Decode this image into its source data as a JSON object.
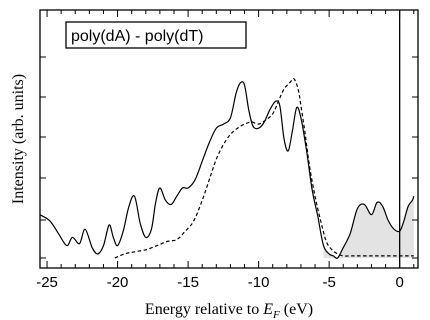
{
  "chart_data": {
    "type": "line",
    "xlabel_prefix": "Energy relative to ",
    "xlabel_var": "E",
    "xlabel_sub": "F",
    "xlabel_suffix": " (eV)",
    "ylabel": "Intensity (arb. units)",
    "legend_label": "poly(dA) - poly(dT)",
    "legend_placement": "top-left",
    "xlim": [
      -25.5,
      1.3
    ],
    "ylim": [
      0,
      1.0
    ],
    "xticks": [
      -25,
      -20,
      -15,
      -10,
      -5,
      0
    ],
    "xtick_labels": [
      "-25",
      "-20",
      "-15",
      "-10",
      "-5",
      "0"
    ],
    "grid": false,
    "fermi_level_x": 0,
    "fill_range": [
      -5.5,
      1.0
    ],
    "fill_color": "#e3e3e3",
    "series": [
      {
        "style": "solid",
        "x": [
          -25.5,
          -24.8,
          -24.2,
          -23.6,
          -23.2,
          -22.7,
          -22.3,
          -21.8,
          -21.4,
          -21.0,
          -20.6,
          -20.3,
          -20.0,
          -19.6,
          -19.2,
          -18.8,
          -18.4,
          -18.0,
          -17.6,
          -17.3,
          -17.0,
          -16.6,
          -16.2,
          -15.8,
          -15.4,
          -15.0,
          -14.5,
          -14.0,
          -13.5,
          -13.0,
          -12.5,
          -12.0,
          -11.6,
          -11.3,
          -11.0,
          -10.7,
          -10.4,
          -10.0,
          -9.6,
          -9.2,
          -8.8,
          -8.5,
          -8.2,
          -7.9,
          -7.6,
          -7.3,
          -7.0,
          -6.6,
          -6.2,
          -5.8,
          -5.4,
          -5.0,
          -4.7,
          -4.4,
          -4.0,
          -3.5,
          -3.0,
          -2.5,
          -2.0,
          -1.6,
          -1.2,
          -0.8,
          -0.4,
          0.0,
          0.3,
          0.6,
          0.9,
          1.0
        ],
        "y": [
          0.21,
          0.18,
          0.12,
          0.06,
          0.1,
          0.07,
          0.14,
          0.05,
          0.02,
          0.06,
          0.16,
          0.1,
          0.06,
          0.13,
          0.25,
          0.3,
          0.17,
          0.1,
          0.14,
          0.27,
          0.34,
          0.28,
          0.26,
          0.3,
          0.34,
          0.34,
          0.38,
          0.47,
          0.56,
          0.63,
          0.65,
          0.68,
          0.8,
          0.85,
          0.84,
          0.72,
          0.64,
          0.63,
          0.66,
          0.72,
          0.76,
          0.74,
          0.58,
          0.52,
          0.62,
          0.73,
          0.68,
          0.52,
          0.33,
          0.2,
          0.06,
          0.02,
          0.01,
          0.0,
          0.05,
          0.12,
          0.24,
          0.26,
          0.21,
          0.27,
          0.25,
          0.18,
          0.14,
          0.13,
          0.18,
          0.25,
          0.28,
          0.3
        ]
      },
      {
        "style": "dashed",
        "x": [
          -20.2,
          -19.5,
          -18.8,
          -18.0,
          -17.2,
          -16.5,
          -15.8,
          -15.2,
          -14.6,
          -14.0,
          -13.5,
          -13.0,
          -12.5,
          -12.0,
          -11.5,
          -11.0,
          -10.5,
          -10.0,
          -9.5,
          -9.0,
          -8.6,
          -8.2,
          -7.8,
          -7.5,
          -7.2,
          -7.0,
          -6.7,
          -6.4,
          -6.0,
          -5.6,
          -5.2,
          -4.8,
          -4.4,
          -4.0,
          -3.5,
          -3.0,
          -2.0,
          -1.0,
          0.0,
          1.0
        ],
        "y": [
          0.0,
          0.02,
          0.03,
          0.04,
          0.06,
          0.08,
          0.09,
          0.13,
          0.18,
          0.28,
          0.38,
          0.48,
          0.55,
          0.6,
          0.63,
          0.65,
          0.66,
          0.65,
          0.67,
          0.7,
          0.76,
          0.82,
          0.85,
          0.87,
          0.82,
          0.74,
          0.6,
          0.45,
          0.3,
          0.18,
          0.08,
          0.04,
          0.02,
          0.01,
          0.01,
          0.01,
          0.01,
          0.01,
          0.01,
          0.01
        ]
      }
    ]
  }
}
